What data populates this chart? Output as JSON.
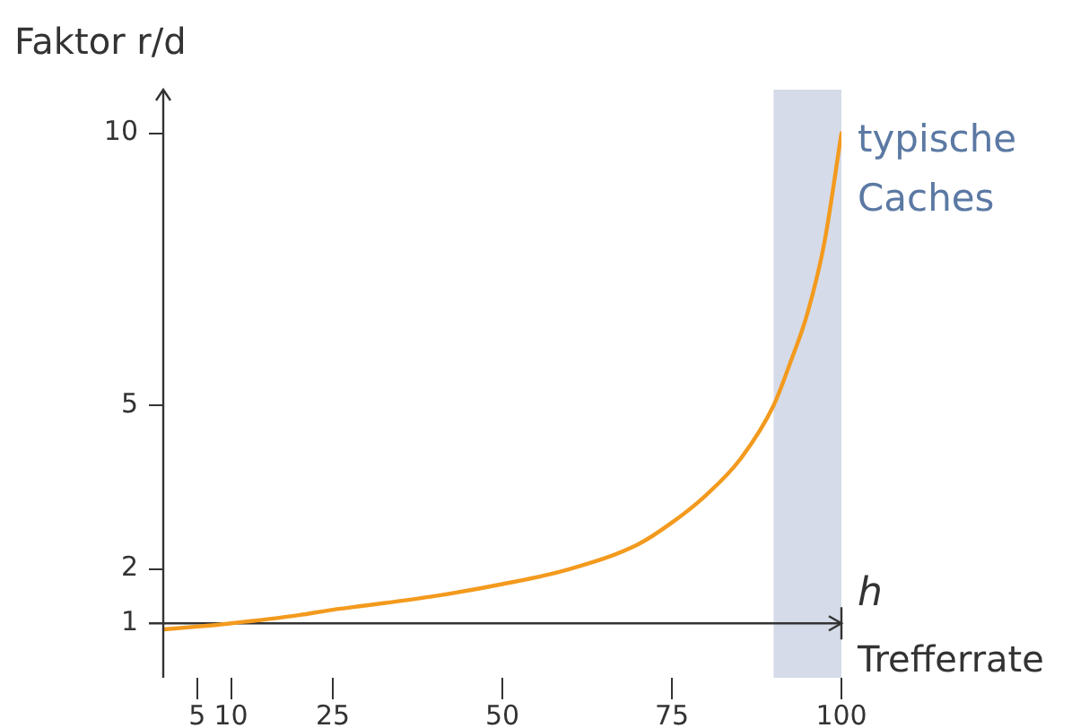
{
  "chart_data": {
    "type": "line",
    "ylabel": "Faktor r/d",
    "xlabel": "Trefferrate",
    "annotations": [
      "h"
    ],
    "x": [
      0,
      5,
      10,
      20,
      25,
      30,
      40,
      50,
      60,
      70,
      75,
      80,
      85,
      90,
      92.5,
      95,
      97.5,
      100
    ],
    "series": [
      {
        "color": "#f39a1e",
        "values": [
          0.89,
          0.94,
          1.0,
          1.15,
          1.25,
          1.33,
          1.5,
          1.72,
          2.0,
          2.45,
          2.85,
          3.35,
          4.0,
          5.0,
          5.8,
          6.7,
          8.0,
          10
        ]
      }
    ],
    "xlim": [
      0,
      100
    ],
    "xticks": [
      5,
      10,
      25,
      50,
      75,
      100
    ],
    "ylim": [
      0,
      10.8
    ],
    "yticks": [
      1,
      2,
      5,
      10
    ],
    "bands": [
      {
        "axis": "x",
        "from": 90,
        "to": 100,
        "label": "typische Caches",
        "color": "#d5dbe8"
      }
    ],
    "ref_lines": [
      {
        "axis": "y",
        "value": 1
      }
    ],
    "grid": false,
    "legend": false,
    "marker": "none",
    "line_style": "solid"
  }
}
